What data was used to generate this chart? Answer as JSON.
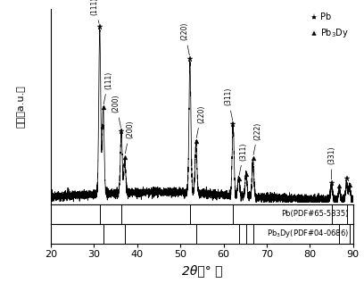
{
  "xlabel": "2θ（° ）",
  "ylabel": "强度（a.u.）",
  "xlim": [
    20,
    90
  ],
  "legend_pb_label": "Pb",
  "legend_pb3dy_label": "Pb$_3$Dy",
  "ref_pb_label": "Pb(PDF#65-5835)",
  "ref_pb3dy_label": "Pb$_3$Dy(PDF#04-0686)",
  "pb_peaks": [
    31.3,
    36.3,
    52.2,
    62.2,
    85.0,
    88.5
  ],
  "pb_intens": [
    0.95,
    0.35,
    0.75,
    0.4,
    0.08,
    0.09
  ],
  "pb3dy_peaks": [
    32.1,
    37.1,
    53.6,
    63.5,
    65.2,
    66.8,
    86.8,
    89.2
  ],
  "pb3dy_intens": [
    0.5,
    0.18,
    0.28,
    0.1,
    0.13,
    0.2,
    0.06,
    0.08
  ],
  "ref_pb_lines": [
    31.3,
    36.3,
    52.2,
    62.2,
    85.0,
    88.5
  ],
  "ref_pb3dy_lines": [
    32.1,
    37.1,
    53.6,
    63.5,
    65.2,
    66.8,
    86.8,
    89.2
  ],
  "xticks": [
    20,
    30,
    40,
    50,
    60,
    70,
    80,
    90
  ],
  "annots_pb": [
    {
      "text": "(111)",
      "x": 31.3
    },
    {
      "text": "(200)",
      "x": 36.3
    },
    {
      "text": "(220)",
      "x": 52.2
    },
    {
      "text": "(311)",
      "x": 62.2
    },
    {
      "text": "(331)",
      "x": 85.0
    }
  ],
  "annots_pb3dy": [
    {
      "text": "(111)",
      "x": 32.1
    },
    {
      "text": "(200)",
      "x": 37.1
    },
    {
      "text": "(220)",
      "x": 53.6
    },
    {
      "text": "(311)",
      "x": 63.5
    },
    {
      "text": "(222)",
      "x": 66.8
    }
  ]
}
